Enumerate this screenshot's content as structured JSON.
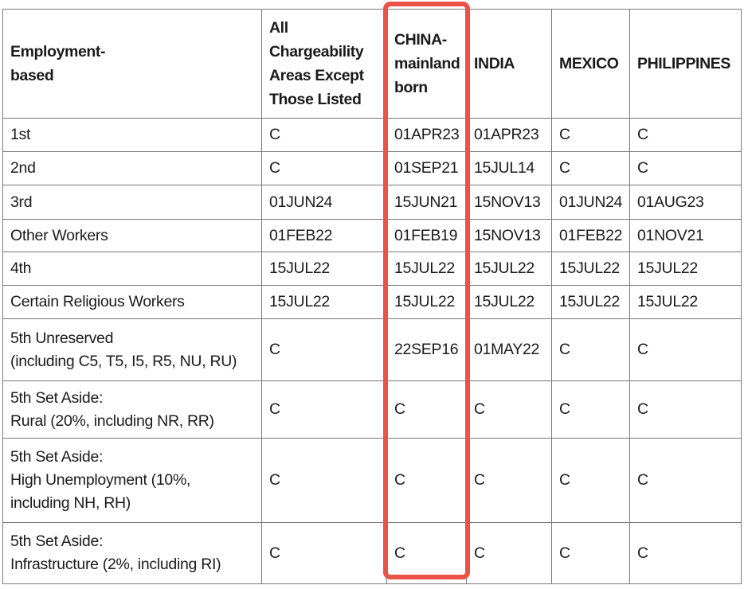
{
  "accent": {
    "highlight_color": "#ec5348",
    "table_border_color": "#7a7a7a",
    "text_color": "#1b1b1b"
  },
  "table": {
    "corner_header": "Employment-\nbased",
    "columns": [
      {
        "id": "all_areas",
        "label": "All\nChargeability\nAreas Except\nThose Listed",
        "highlighted": false
      },
      {
        "id": "china",
        "label": "CHINA-\nmainland\nborn",
        "highlighted": true
      },
      {
        "id": "india",
        "label": "INDIA",
        "highlighted": false
      },
      {
        "id": "mexico",
        "label": "MEXICO",
        "highlighted": false
      },
      {
        "id": "philippines",
        "label": "PHILIPPINES",
        "highlighted": false
      }
    ],
    "rows": [
      {
        "category": "1st",
        "cells": [
          "C",
          "01APR23",
          "01APR23",
          "C",
          "C"
        ]
      },
      {
        "category": "2nd",
        "cells": [
          "C",
          "01SEP21",
          "15JUL14",
          "C",
          "C"
        ]
      },
      {
        "category": "3rd",
        "cells": [
          "01JUN24",
          "15JUN21",
          "15NOV13",
          "01JUN24",
          "01AUG23"
        ]
      },
      {
        "category": "Other Workers",
        "cells": [
          "01FEB22",
          "01FEB19",
          "15NOV13",
          "01FEB22",
          "01NOV21"
        ]
      },
      {
        "category": "4th",
        "cells": [
          "15JUL22",
          "15JUL22",
          "15JUL22",
          "15JUL22",
          "15JUL22"
        ]
      },
      {
        "category": "Certain Religious Workers",
        "cells": [
          "15JUL22",
          "15JUL22",
          "15JUL22",
          "15JUL22",
          "15JUL22"
        ]
      },
      {
        "category": "5th Unreserved\n(including C5, T5, I5, R5, NU, RU)",
        "cells": [
          "C",
          "22SEP16",
          "01MAY22",
          "C",
          "C"
        ]
      },
      {
        "category": "5th Set Aside:\nRural (20%, including NR, RR)",
        "cells": [
          "C",
          "C",
          "C",
          "C",
          "C"
        ]
      },
      {
        "category": "5th Set Aside:\nHigh Unemployment (10%,\nincluding NH, RH)",
        "cells": [
          "C",
          "C",
          "C",
          "C",
          "C"
        ]
      },
      {
        "category": "5th Set Aside:\nInfrastructure (2%, including RI)",
        "cells": [
          "C",
          "C",
          "C",
          "C",
          "C"
        ]
      }
    ]
  }
}
